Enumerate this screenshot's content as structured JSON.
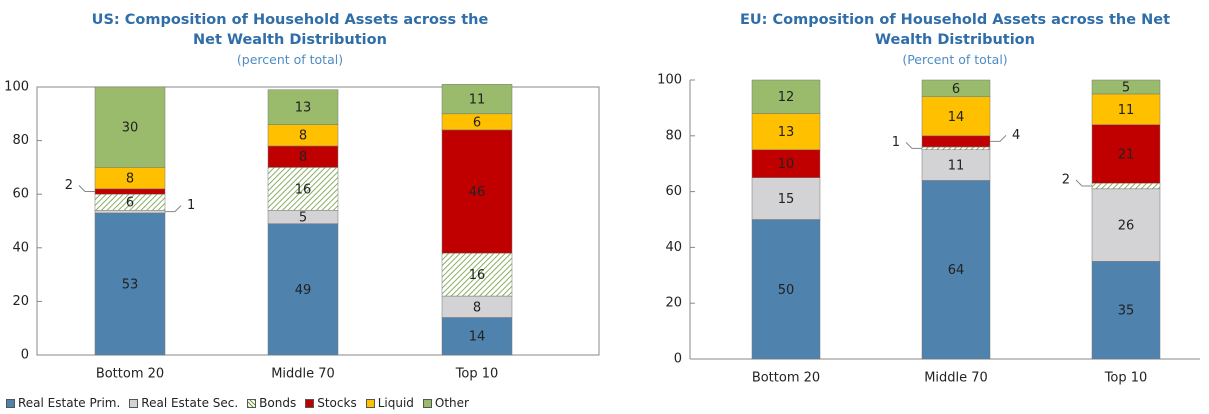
{
  "chart_data": [
    {
      "type": "bar",
      "stacked": true,
      "title": "US: Composition of Household Assets across the Net Wealth Distribution",
      "subtitle": "(percent of total)",
      "categories": [
        "Bottom 20",
        "Middle 70",
        "Top 10"
      ],
      "series": [
        {
          "name": "Real Estate Prim.",
          "color": "#4f82ad",
          "values": [
            53,
            49,
            14
          ]
        },
        {
          "name": "Real Estate Sec.",
          "color": "#d3d2d4",
          "values": [
            1,
            5,
            8
          ]
        },
        {
          "name": "Bonds",
          "color": "#6b9a3c",
          "pattern": "hatch",
          "values": [
            6,
            16,
            16
          ]
        },
        {
          "name": "Stocks",
          "color": "#c00000",
          "values": [
            2,
            8,
            46
          ]
        },
        {
          "name": "Liquid",
          "color": "#ffc000",
          "values": [
            8,
            8,
            6
          ]
        },
        {
          "name": "Other",
          "color": "#9bbb6c",
          "values": [
            30,
            13,
            11
          ]
        }
      ],
      "ylim": [
        0,
        100
      ],
      "yticks": [
        0,
        20,
        40,
        60,
        80,
        100
      ],
      "legend": "bottom"
    },
    {
      "type": "bar",
      "stacked": true,
      "title": "EU: Composition of Household Assets across the Net Wealth Distribution",
      "subtitle": "(Percent of total)",
      "categories": [
        "Bottom 20",
        "Middle 70",
        "Top 10"
      ],
      "series": [
        {
          "color": "#4f82ad",
          "values": [
            50,
            64,
            35
          ]
        },
        {
          "color": "#d3d2d4",
          "values": [
            15,
            11,
            26
          ]
        },
        {
          "color": "#6b9a3c",
          "pattern": "hatch",
          "values": [
            null,
            1,
            2
          ]
        },
        {
          "color": "#c00000",
          "values": [
            10,
            4,
            21
          ]
        },
        {
          "color": "#ffc000",
          "values": [
            13,
            14,
            11
          ]
        },
        {
          "color": "#9bbb6c",
          "values": [
            12,
            6,
            5
          ]
        }
      ],
      "ylim": [
        0,
        100
      ],
      "yticks": [
        0,
        20,
        40,
        60,
        80,
        100
      ]
    }
  ]
}
